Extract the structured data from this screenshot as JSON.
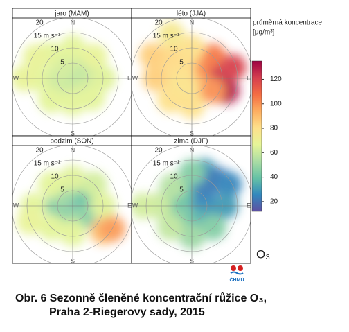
{
  "chart_data": {
    "type": "polar",
    "panels": [
      {
        "title": "jaro (MAM)",
        "points": [
          [
            0,
            0,
            45
          ],
          [
            0,
            5,
            60
          ],
          [
            45,
            5,
            60
          ],
          [
            90,
            5,
            58
          ],
          [
            135,
            5,
            60
          ],
          [
            180,
            5,
            62
          ],
          [
            225,
            5,
            60
          ],
          [
            270,
            5,
            60
          ],
          [
            315,
            5,
            62
          ],
          [
            0,
            10,
            66
          ],
          [
            45,
            10,
            68
          ],
          [
            90,
            10,
            65
          ],
          [
            135,
            9,
            66
          ],
          [
            180,
            8,
            66
          ],
          [
            225,
            10,
            66
          ],
          [
            270,
            12,
            66
          ],
          [
            315,
            11,
            66
          ],
          [
            270,
            16,
            68
          ],
          [
            300,
            14,
            68
          ]
        ]
      },
      {
        "title": "léto (JJA)",
        "points": [
          [
            0,
            0,
            80
          ],
          [
            0,
            5,
            82
          ],
          [
            45,
            6,
            95
          ],
          [
            90,
            6,
            105
          ],
          [
            135,
            5,
            90
          ],
          [
            180,
            5,
            80
          ],
          [
            225,
            5,
            78
          ],
          [
            270,
            5,
            78
          ],
          [
            315,
            5,
            80
          ],
          [
            45,
            10,
            105
          ],
          [
            90,
            10,
            125
          ],
          [
            110,
            12,
            130
          ],
          [
            75,
            14,
            120
          ],
          [
            120,
            8,
            100
          ],
          [
            180,
            9,
            80
          ],
          [
            225,
            10,
            80
          ],
          [
            270,
            12,
            85
          ],
          [
            315,
            10,
            82
          ],
          [
            0,
            10,
            80
          ],
          [
            300,
            15,
            85
          ],
          [
            335,
            16,
            75
          ]
        ]
      },
      {
        "title": "podzim (SON)",
        "points": [
          [
            0,
            0,
            25
          ],
          [
            0,
            5,
            45
          ],
          [
            45,
            5,
            42
          ],
          [
            90,
            5,
            40
          ],
          [
            135,
            5,
            45
          ],
          [
            180,
            5,
            48
          ],
          [
            225,
            5,
            50
          ],
          [
            270,
            5,
            45
          ],
          [
            315,
            5,
            50
          ],
          [
            0,
            9,
            65
          ],
          [
            45,
            10,
            62
          ],
          [
            90,
            10,
            65
          ],
          [
            130,
            13,
            90
          ],
          [
            120,
            15,
            98
          ],
          [
            180,
            9,
            66
          ],
          [
            225,
            10,
            66
          ],
          [
            270,
            13,
            66
          ],
          [
            315,
            10,
            66
          ],
          [
            250,
            15,
            68
          ]
        ]
      },
      {
        "title": "zima (DJF)",
        "points": [
          [
            0,
            0,
            20
          ],
          [
            0,
            5,
            28
          ],
          [
            45,
            5,
            22
          ],
          [
            90,
            5,
            25
          ],
          [
            135,
            5,
            30
          ],
          [
            180,
            5,
            35
          ],
          [
            225,
            5,
            42
          ],
          [
            270,
            5,
            45
          ],
          [
            315,
            5,
            40
          ],
          [
            20,
            12,
            30
          ],
          [
            45,
            12,
            22
          ],
          [
            60,
            14,
            25
          ],
          [
            90,
            11,
            30
          ],
          [
            135,
            10,
            45
          ],
          [
            180,
            10,
            50
          ],
          [
            225,
            10,
            58
          ],
          [
            270,
            11,
            60
          ],
          [
            270,
            16,
            62
          ],
          [
            315,
            9,
            55
          ],
          [
            0,
            11,
            45
          ]
        ]
      }
    ],
    "directions": [
      "N",
      "E",
      "S",
      "W"
    ],
    "rlim": [
      0,
      22
    ],
    "rticks": [
      5,
      10,
      {
        "value": 15,
        "label": "15 m s⁻¹"
      },
      20
    ],
    "colorbar": {
      "title": "průměrná koncentrace",
      "unit": "[μg/m³]",
      "lim": [
        12,
        135
      ],
      "ticks": [
        20,
        40,
        60,
        80,
        100,
        120
      ],
      "colors": [
        "#5e4fa2",
        "#3288bd",
        "#66c2a5",
        "#abdda4",
        "#e6f598",
        "#fee08b",
        "#fdae61",
        "#f46d43",
        "#d53e4f",
        "#9e0142"
      ]
    },
    "pollutant": "O₃",
    "logo": "ČHMÚ"
  },
  "caption": {
    "line1": "Obr. 6  Sezonně členěné koncentrační růžice O₃,",
    "line2": "Praha 2-Riegerovy sady, 2015"
  }
}
